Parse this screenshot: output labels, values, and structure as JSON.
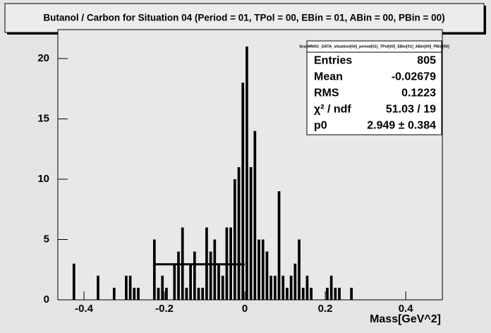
{
  "chart_data": {
    "type": "histogram",
    "title": "Butanol / Carbon for Situation 04 (Period = 01, TPol = 00, EBin = 01, ABin = 00, PBin = 00)",
    "x_label": "Mass[GeV^2]",
    "bins": [
      -0.44,
      -0.43,
      -0.42,
      -0.41,
      -0.4,
      -0.39,
      -0.38,
      -0.37,
      -0.36,
      -0.35,
      -0.34,
      -0.33,
      -0.32,
      -0.31,
      -0.3,
      -0.29,
      -0.28,
      -0.27,
      -0.26,
      -0.25,
      -0.24,
      -0.23,
      -0.22,
      -0.21,
      -0.2,
      -0.19,
      -0.18,
      -0.17,
      -0.16,
      -0.15,
      -0.14,
      -0.13,
      -0.12,
      -0.11,
      -0.1,
      -0.09,
      -0.08,
      -0.07,
      -0.06,
      -0.05,
      -0.04,
      -0.03,
      -0.02,
      -0.01,
      0,
      0.01,
      0.02,
      0.03,
      0.04,
      0.05,
      0.06,
      0.07,
      0.08,
      0.09,
      0.1,
      0.11,
      0.12,
      0.13,
      0.14,
      0.15,
      0.16,
      0.17,
      0.18,
      0.19,
      0.2,
      0.21,
      0.22,
      0.23,
      0.24,
      0.25,
      0.26,
      0.27,
      0.28,
      0.29
    ],
    "counts": [
      0,
      3,
      0,
      0,
      0,
      0,
      0,
      2,
      0,
      0,
      0,
      1,
      0,
      0,
      2,
      2,
      1,
      1,
      0,
      0,
      0,
      5,
      1,
      2,
      1,
      0,
      3,
      4,
      6,
      1,
      3,
      4,
      1,
      1,
      6,
      4,
      5,
      3,
      2,
      6,
      6,
      10,
      11,
      18,
      21,
      11,
      14,
      5,
      5,
      4,
      2,
      2,
      9,
      2,
      1,
      2,
      3,
      5,
      1,
      2,
      1,
      0,
      0,
      0,
      1,
      2,
      1,
      1,
      0,
      0,
      1,
      0,
      0
    ],
    "color": "#000000",
    "fit": {
      "value": 2.949,
      "range": [
        -0.225,
        0
      ]
    },
    "xlim": [
      -0.465,
      0.491
    ],
    "ylim": [
      0,
      22.4
    ],
    "xticks": [
      -0.4,
      -0.2,
      0,
      0.2,
      0.4
    ],
    "yticks": [
      0,
      5,
      10,
      15,
      20
    ],
    "stats": {
      "title": "ScatMMSC_DATA_situation[04]_period[01]_TPol[00]_EBin[01]_ABin[00]_PBin[00]",
      "rows": [
        {
          "label": "Entries",
          "value": 805
        },
        {
          "label": "Mean",
          "value": -0.02679
        },
        {
          "label": "RMS",
          "value": 0.1223
        },
        {
          "label": "χ² / ndf",
          "value": "51.03 / 19"
        },
        {
          "label": "p0",
          "value": "2.949 ± 0.384"
        }
      ]
    }
  }
}
